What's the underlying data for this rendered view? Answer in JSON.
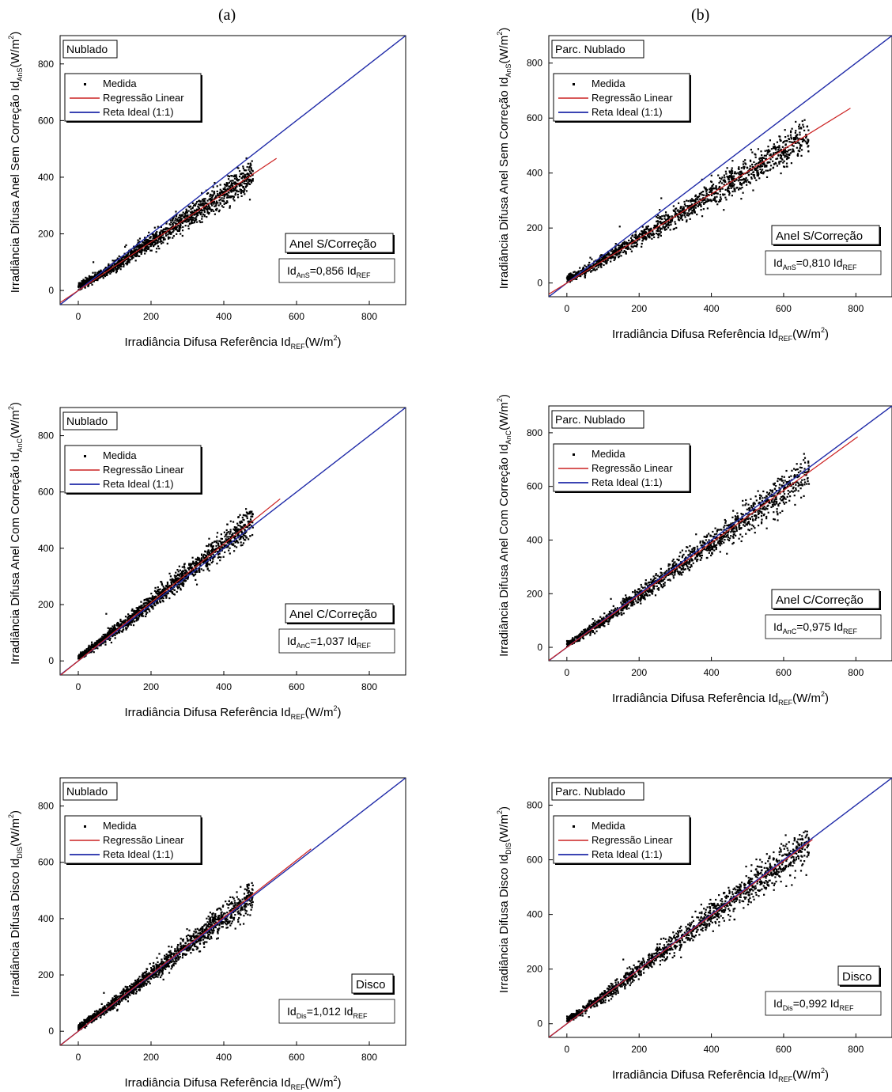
{
  "column_labels": [
    "(a)",
    "(b)"
  ],
  "chart_data": [
    {
      "type": "scatter",
      "panel": "a1",
      "condition": "Nublado",
      "xlabel": "Irradiância Difusa Referência Id",
      "xlabel_sub": "REF",
      "xlabel_unit": "(W/m",
      "xlabel_sup": "2",
      "xlabel_close": ")",
      "ylabel": "Irradiância Difusa Anel Sem Correção Id",
      "ylabel_sub": "AnS",
      "ylabel_unit": "(W/m",
      "ylabel_sup": "2",
      "ylabel_close": ")",
      "xlim": [
        -50,
        900
      ],
      "ylim": [
        -50,
        900
      ],
      "xticks": [
        0,
        200,
        400,
        600,
        800
      ],
      "yticks": [
        0,
        200,
        400,
        600,
        800
      ],
      "legend": [
        "Medida",
        "Regressão Linear",
        "Reta Ideal (1:1)"
      ],
      "box_title": "Anel S/Correção",
      "eq_prefix": "Id",
      "eq_sub": "AnS",
      "eq_value": "=0,856 Id",
      "eq_sub2": "REF",
      "slope": 0.856,
      "regression_x_max": 545,
      "data_x_range": [
        0,
        480
      ],
      "series_colors": {
        "measured": "#000000",
        "regression": "#cc2222",
        "ideal": "#1f2aa8"
      }
    },
    {
      "type": "scatter",
      "panel": "b1",
      "condition": "Parc. Nublado",
      "xlabel": "Irradiância Difusa Referência Id",
      "xlabel_sub": "REF",
      "xlabel_unit": "(W/m",
      "xlabel_sup": "2",
      "xlabel_close": ")",
      "ylabel": "Irradiância Difusa Anel Sem Correção Id",
      "ylabel_sub": "AnS",
      "ylabel_unit": "(W/m",
      "ylabel_sup": "2",
      "ylabel_close": ")",
      "xlim": [
        -50,
        900
      ],
      "ylim": [
        -50,
        900
      ],
      "xticks": [
        0,
        200,
        400,
        600,
        800
      ],
      "yticks": [
        0,
        200,
        400,
        600,
        800
      ],
      "legend": [
        "Medida",
        "Regressão Linear",
        "Reta Ideal (1:1)"
      ],
      "box_title": "Anel S/Correção",
      "eq_prefix": "Id",
      "eq_sub": "AnS",
      "eq_value": "=0,810 Id",
      "eq_sub2": "REF",
      "slope": 0.81,
      "regression_x_max": 785,
      "data_x_range": [
        0,
        670
      ],
      "series_colors": {
        "measured": "#000000",
        "regression": "#cc2222",
        "ideal": "#1f2aa8"
      }
    },
    {
      "type": "scatter",
      "panel": "a2",
      "condition": "Nublado",
      "xlabel": "Irradiância Difusa Referência Id",
      "xlabel_sub": "REF",
      "xlabel_unit": "(W/m",
      "xlabel_sup": "2",
      "xlabel_close": ")",
      "ylabel": "Irradiância Difusa Anel Com Correção Id",
      "ylabel_sub": "AnC",
      "ylabel_unit": "(W/m",
      "ylabel_sup": "2",
      "ylabel_close": ")",
      "xlim": [
        -50,
        900
      ],
      "ylim": [
        -50,
        900
      ],
      "xticks": [
        0,
        200,
        400,
        600,
        800
      ],
      "yticks": [
        0,
        200,
        400,
        600,
        800
      ],
      "legend": [
        "Medida",
        "Regressão Linear",
        "Reta Ideal (1:1)"
      ],
      "box_title": "Anel C/Correção",
      "eq_prefix": "Id",
      "eq_sub": "AnC",
      "eq_value": "=1,037 Id",
      "eq_sub2": "REF",
      "slope": 1.037,
      "regression_x_max": 555,
      "data_x_range": [
        0,
        480
      ],
      "series_colors": {
        "measured": "#000000",
        "regression": "#cc2222",
        "ideal": "#1f2aa8"
      }
    },
    {
      "type": "scatter",
      "panel": "b2",
      "condition": "Parc. Nublado",
      "xlabel": "Irradiância Difusa Referência Id",
      "xlabel_sub": "REF",
      "xlabel_unit": "(W/m",
      "xlabel_sup": "2",
      "xlabel_close": ")",
      "ylabel": "Irradiância Difusa Anel Com Correção Id",
      "ylabel_sub": "AnC",
      "ylabel_unit": "(W/m",
      "ylabel_sup": "2",
      "ylabel_close": ")",
      "xlim": [
        -50,
        900
      ],
      "ylim": [
        -50,
        900
      ],
      "xticks": [
        0,
        200,
        400,
        600,
        800
      ],
      "yticks": [
        0,
        200,
        400,
        600,
        800
      ],
      "legend": [
        "Medida",
        "Regressão Linear",
        "Reta Ideal (1:1)"
      ],
      "box_title": "Anel C/Correção",
      "eq_prefix": "Id",
      "eq_sub": "AnC",
      "eq_value": "=0,975 Id",
      "eq_sub2": "REF",
      "slope": 0.975,
      "regression_x_max": 805,
      "data_x_range": [
        0,
        670
      ],
      "series_colors": {
        "measured": "#000000",
        "regression": "#cc2222",
        "ideal": "#1f2aa8"
      }
    },
    {
      "type": "scatter",
      "panel": "a3",
      "condition": "Nublado",
      "xlabel": "Irradiância Difusa Referência Id",
      "xlabel_sub": "REF",
      "xlabel_unit": "(W/m",
      "xlabel_sup": "2",
      "xlabel_close": ")",
      "ylabel": "Irradiância Difusa Disco Id",
      "ylabel_sub": "DIS",
      "ylabel_unit": "(W/m",
      "ylabel_sup": "2",
      "ylabel_close": ")",
      "xlim": [
        -50,
        900
      ],
      "ylim": [
        -50,
        900
      ],
      "xticks": [
        0,
        200,
        400,
        600,
        800
      ],
      "yticks": [
        0,
        200,
        400,
        600,
        800
      ],
      "legend": [
        "Medida",
        "Regressão Linear",
        "Reta Ideal (1:1)"
      ],
      "box_title": "Disco",
      "eq_prefix": "Id",
      "eq_sub": "Dis",
      "eq_value": "=1,012 Id",
      "eq_sub2": "REF",
      "slope": 1.012,
      "regression_x_max": 640,
      "data_x_range": [
        0,
        480
      ],
      "series_colors": {
        "measured": "#000000",
        "regression": "#cc2222",
        "ideal": "#1f2aa8"
      }
    },
    {
      "type": "scatter",
      "panel": "b3",
      "condition": "Parc. Nublado",
      "xlabel": "Irradiância Difusa Referência Id",
      "xlabel_sub": "REF",
      "xlabel_unit": "(W/m",
      "xlabel_sup": "2",
      "xlabel_close": ")",
      "ylabel": "Irradiância Difusa Disco Id",
      "ylabel_sub": "DIS",
      "ylabel_unit": "(W/m",
      "ylabel_sup": "2",
      "ylabel_close": ")",
      "xlim": [
        -50,
        900
      ],
      "ylim": [
        -50,
        900
      ],
      "xticks": [
        0,
        200,
        400,
        600,
        800
      ],
      "yticks": [
        0,
        200,
        400,
        600,
        800
      ],
      "legend": [
        "Medida",
        "Regressão Linear",
        "Reta Ideal (1:1)"
      ],
      "box_title": "Disco",
      "eq_prefix": "Id",
      "eq_sub": "Dis",
      "eq_value": "=0,992 Id",
      "eq_sub2": "REF",
      "slope": 0.992,
      "regression_x_max": 680,
      "data_x_range": [
        0,
        670
      ],
      "series_colors": {
        "measured": "#000000",
        "regression": "#cc2222",
        "ideal": "#1f2aa8"
      }
    }
  ]
}
